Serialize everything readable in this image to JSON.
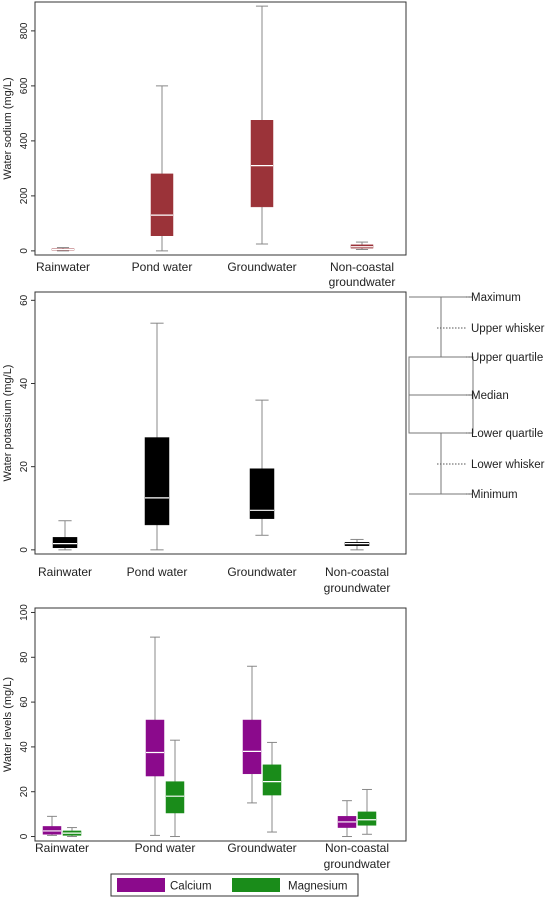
{
  "chart_data": [
    {
      "type": "box",
      "ylabel": "Water sodium (mg/L)",
      "yticks": [
        0,
        200,
        400,
        600,
        800
      ],
      "ylim": [
        -15,
        905
      ],
      "grid": false,
      "categories": [
        "Rainwater",
        "Pond water",
        "Groundwater",
        "Non-coastal groundwater"
      ],
      "series": [
        {
          "color": "#9b3339",
          "boxes": [
            {
              "min": 0,
              "q1": 3,
              "median": 5,
              "q3": 8,
              "max": 12
            },
            {
              "min": 0,
              "q1": 55,
              "median": 130,
              "q3": 280,
              "max": 600
            },
            {
              "min": 25,
              "q1": 160,
              "median": 310,
              "q3": 475,
              "max": 890
            },
            {
              "min": 5,
              "q1": 10,
              "median": 15,
              "q3": 22,
              "max": 32
            }
          ]
        }
      ]
    },
    {
      "type": "box",
      "ylabel": "Water potassium (mg/L)",
      "yticks": [
        0,
        20,
        40,
        60
      ],
      "ylim": [
        -1,
        62
      ],
      "grid": false,
      "categories": [
        "Rainwater",
        "Pond water",
        "Groundwater",
        "Non-coastal groundwater"
      ],
      "series": [
        {
          "color": "#000000",
          "boxes": [
            {
              "min": 0,
              "q1": 0.5,
              "median": 1.5,
              "q3": 3,
              "max": 7
            },
            {
              "min": 0,
              "q1": 6,
              "median": 12.5,
              "q3": 27,
              "max": 54.5
            },
            {
              "min": 3.5,
              "q1": 7.5,
              "median": 9.5,
              "q3": 19.5,
              "max": 36
            },
            {
              "min": 0,
              "q1": 1,
              "median": 1.5,
              "q3": 1.8,
              "max": 2.5
            }
          ]
        }
      ]
    },
    {
      "type": "box",
      "ylabel": "Water levels (mg/L)",
      "yticks": [
        0,
        20,
        40,
        60,
        80,
        100
      ],
      "ylim": [
        -2,
        102
      ],
      "grid": false,
      "categories": [
        "Rainwater",
        "Pond water",
        "Groundwater",
        "Non-coastal groundwater"
      ],
      "series": [
        {
          "name": "Calcium",
          "color": "#8b0a8c",
          "boxes": [
            {
              "min": 0.5,
              "q1": 1,
              "median": 2.5,
              "q3": 4.5,
              "max": 9
            },
            {
              "min": 0.5,
              "q1": 27,
              "median": 37.5,
              "q3": 52,
              "max": 89
            },
            {
              "min": 15,
              "q1": 28,
              "median": 38,
              "q3": 52,
              "max": 76
            },
            {
              "min": 0,
              "q1": 4,
              "median": 6.5,
              "q3": 9,
              "max": 16
            }
          ]
        },
        {
          "name": "Magnesium",
          "color": "#1a8c1a",
          "boxes": [
            {
              "min": 0,
              "q1": 0.5,
              "median": 1.5,
              "q3": 2.5,
              "max": 4
            },
            {
              "min": 0,
              "q1": 10.5,
              "median": 18,
              "q3": 24.5,
              "max": 43
            },
            {
              "min": 2,
              "q1": 18.5,
              "median": 24.5,
              "q3": 32,
              "max": 42
            },
            {
              "min": 1,
              "q1": 5,
              "median": 7.5,
              "q3": 11,
              "max": 21
            }
          ]
        }
      ]
    }
  ],
  "key": {
    "labels": [
      "Maximum",
      "Upper whisker",
      "Upper quartile",
      "Median",
      "Lower quartile",
      "Lower whisker",
      "Minimum"
    ]
  },
  "legend": {
    "placement": "bottom",
    "items": [
      {
        "name": "Calcium",
        "color": "#8b0a8c"
      },
      {
        "name": "Magnesium",
        "color": "#1a8c1a"
      }
    ]
  },
  "colors": {
    "whisker": "#888888",
    "median": "#ffffff",
    "box_outline_key": "#777777"
  }
}
